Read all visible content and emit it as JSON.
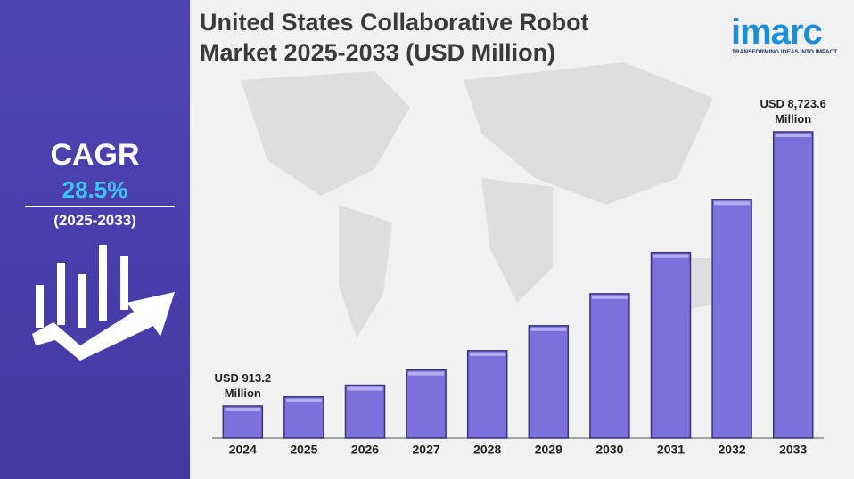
{
  "chart_data": {
    "type": "bar",
    "title": "United States Collaborative Robot Market 2025-2033 (USD Million)",
    "categories": [
      "2024",
      "2025",
      "2026",
      "2027",
      "2028",
      "2029",
      "2030",
      "2031",
      "2032",
      "2033"
    ],
    "values": [
      913.2,
      1173.5,
      1508.0,
      1937.7,
      2490.0,
      3199.6,
      4111.5,
      5283.3,
      6789.1,
      8723.6
    ],
    "value_labels": [
      "USD 913.2 Million",
      null,
      null,
      null,
      null,
      null,
      null,
      null,
      null,
      "USD 8,723.6 Million"
    ],
    "color": "#7b70dc"
  },
  "cagr": {
    "label": "CAGR",
    "value": "28.5%",
    "period": "(2025-2033)"
  },
  "logo": {
    "name": "imarc",
    "tagline": "TRANSFORMING IDEAS INTO IMPACT"
  }
}
